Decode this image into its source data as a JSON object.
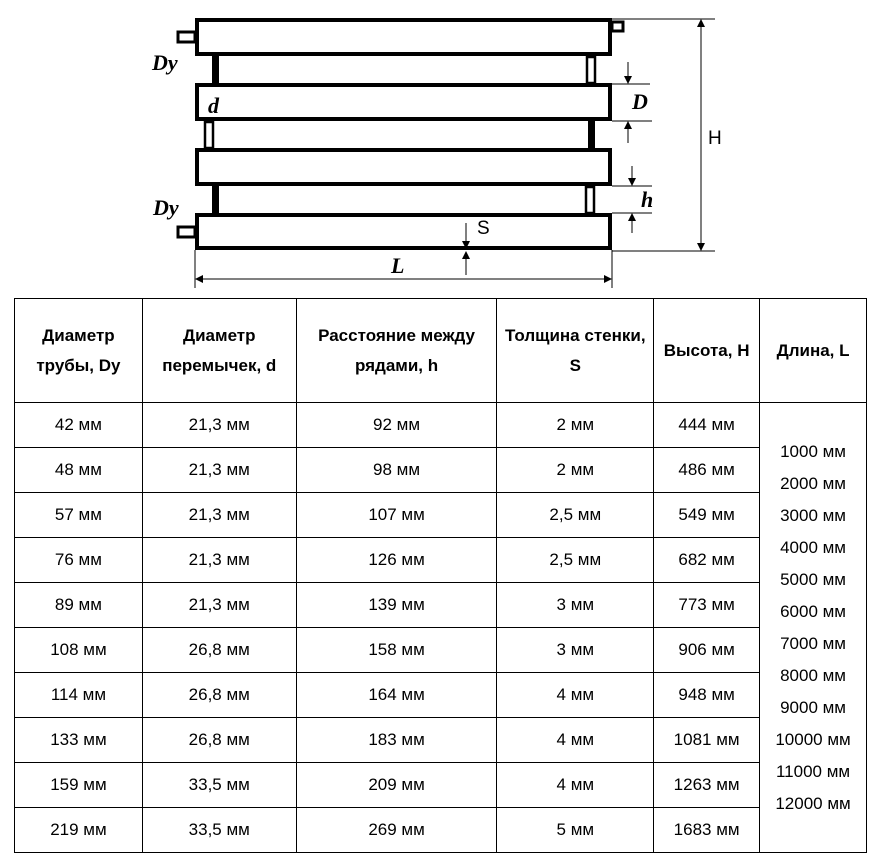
{
  "diagram": {
    "labels": {
      "dy_top": "Dy",
      "dy_bottom": "Dy",
      "d": "d",
      "D": "D",
      "h": "h",
      "S": "S",
      "H": "H",
      "L": "L"
    }
  },
  "table": {
    "headers": [
      "Диаметр трубы, Dy",
      "Диаметр перемычек, d",
      "Расстояние между рядами, h",
      "Толщина стенки, S",
      "Высота, H",
      "Длина, L"
    ],
    "rows": [
      [
        "42 мм",
        "21,3 мм",
        "92 мм",
        "2 мм",
        "444 мм"
      ],
      [
        "48 мм",
        "21,3 мм",
        "98 мм",
        "2 мм",
        "486 мм"
      ],
      [
        "57 мм",
        "21,3 мм",
        "107 мм",
        "2,5 мм",
        "549 мм"
      ],
      [
        "76 мм",
        "21,3 мм",
        "126 мм",
        "2,5 мм",
        "682 мм"
      ],
      [
        "89 мм",
        "21,3 мм",
        "139 мм",
        "3 мм",
        "773 мм"
      ],
      [
        "108 мм",
        "26,8 мм",
        "158 мм",
        "3 мм",
        "906 мм"
      ],
      [
        "114 мм",
        "26,8 мм",
        "164 мм",
        "4 мм",
        "948 мм"
      ],
      [
        "133 мм",
        "26,8 мм",
        "183 мм",
        "4 мм",
        "1081 мм"
      ],
      [
        "159 мм",
        "33,5 мм",
        "209 мм",
        "4 мм",
        "1263 мм"
      ],
      [
        "219 мм",
        "33,5 мм",
        "269 мм",
        "5 мм",
        "1683 мм"
      ]
    ],
    "lengths": [
      "1000 мм",
      "2000 мм",
      "3000 мм",
      "4000 мм",
      "5000 мм",
      "6000 мм",
      "7000 мм",
      "8000 мм",
      "9000 мм",
      "10000 мм",
      "11000 мм",
      "12000 мм"
    ]
  }
}
